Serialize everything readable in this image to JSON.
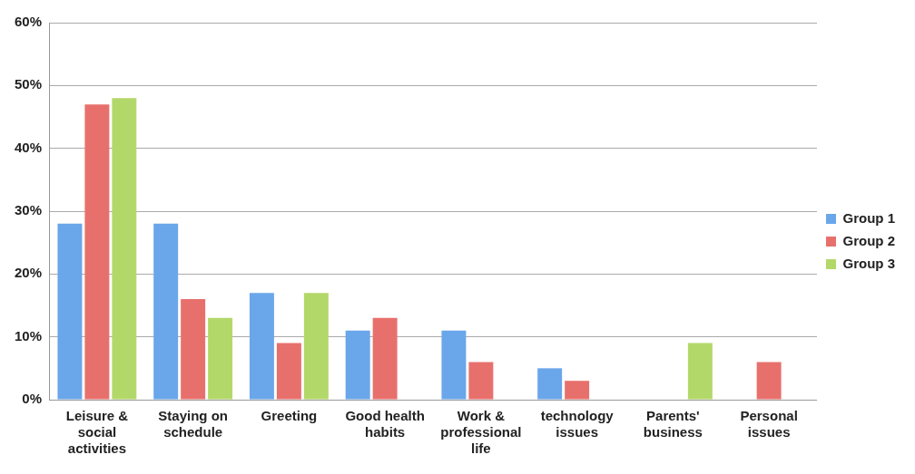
{
  "chart_data": {
    "type": "bar",
    "categories": [
      "Leisure & social activities",
      "Staying on schedule",
      "Greeting",
      "Good health habits",
      "Work & professional life",
      "technology issues",
      "Parents' business",
      "Personal issues"
    ],
    "series": [
      {
        "name": "Group 1",
        "color": "#6aa6ea",
        "values": [
          28,
          28,
          17,
          11,
          11,
          5,
          0,
          0
        ]
      },
      {
        "name": "Group 2",
        "color": "#e8706c",
        "values": [
          47,
          16,
          9,
          13,
          6,
          3,
          0,
          6
        ]
      },
      {
        "name": "Group 3",
        "color": "#b3d86a",
        "values": [
          48,
          13,
          17,
          0,
          0,
          0,
          9,
          0
        ]
      }
    ],
    "ylim": [
      0,
      60
    ],
    "yticks": [
      {
        "value": 0,
        "label": "0%"
      },
      {
        "value": 10,
        "label": "10%"
      },
      {
        "value": 20,
        "label": "20%"
      },
      {
        "value": 30,
        "label": "30%"
      },
      {
        "value": 40,
        "label": "40%"
      },
      {
        "value": 50,
        "label": "50%"
      },
      {
        "value": 60,
        "label": "60%"
      }
    ],
    "grid": "y",
    "legend": "right"
  }
}
